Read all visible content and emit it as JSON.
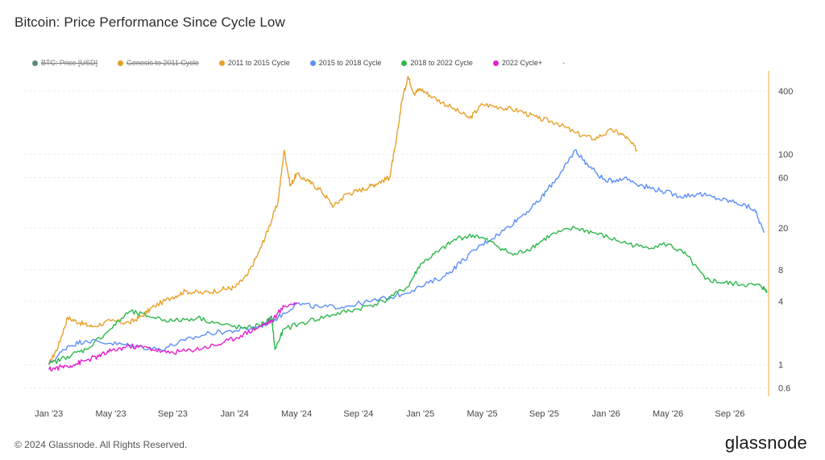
{
  "header": {
    "title": "Bitcoin: Price Performance Since Cycle Low"
  },
  "legend": {
    "items": [
      {
        "label": "BTC: Price [USD]",
        "color": "#5a8a7a",
        "disabled": true
      },
      {
        "label": "Genesis to 2011 Cycle",
        "color": "#e0a020",
        "disabled": true
      },
      {
        "label": "2011 to 2015 Cycle",
        "color": "#e8a12c",
        "disabled": false
      },
      {
        "label": "2015 to 2018 Cycle",
        "color": "#5b8ff9",
        "disabled": false
      },
      {
        "label": "2018 to 2022 Cycle",
        "color": "#2eb84a",
        "disabled": false
      },
      {
        "label": "2022 Cycle+",
        "color": "#e81fd1",
        "disabled": false
      }
    ],
    "extra": "-"
  },
  "footer": {
    "copyright": "© 2024 Glassnode. All Rights Reserved.",
    "brand": "glassnode"
  },
  "chart_data": {
    "type": "line",
    "title": "Bitcoin: Price Performance Since Cycle Low",
    "y_scale": "log",
    "ylim": [
      0.5,
      600
    ],
    "y_ticks": [
      0.6,
      1,
      4,
      8,
      20,
      60,
      100,
      400
    ],
    "x_ticks": [
      "Jan '23",
      "May '23",
      "Sep '23",
      "Jan '24",
      "May '24",
      "Sep '24",
      "Jan '25",
      "May '25",
      "Sep '25",
      "Jan '26",
      "May '26",
      "Sep '26"
    ],
    "x_range": [
      -0.4,
      11.6
    ],
    "grid": true,
    "y_axis_position": "right",
    "series": [
      {
        "name": "2011 to 2015 Cycle",
        "color": "#e8a12c",
        "x": [
          0,
          0.15,
          0.3,
          0.5,
          0.7,
          1.0,
          1.3,
          1.5,
          1.7,
          2.0,
          2.2,
          2.5,
          2.8,
          3.0,
          3.2,
          3.4,
          3.55,
          3.7,
          3.8,
          3.9,
          4.0,
          4.2,
          4.4,
          4.6,
          4.8,
          5.0,
          5.2,
          5.35,
          5.5,
          5.6,
          5.7,
          5.8,
          5.9,
          6.0,
          6.2,
          6.5,
          6.8,
          7.0,
          7.3,
          7.6,
          7.9,
          8.2,
          8.5,
          8.8,
          9.1,
          9.3,
          9.5
        ],
        "values": [
          1.0,
          1.5,
          2.8,
          2.5,
          2.3,
          2.6,
          2.5,
          2.9,
          3.6,
          4.4,
          5.0,
          4.8,
          5.2,
          5.4,
          7.0,
          12.0,
          20.0,
          35.0,
          110.0,
          50.0,
          65.0,
          55.0,
          45.0,
          32.0,
          42.0,
          45.0,
          50.0,
          55.0,
          60.0,
          120.0,
          320.0,
          550.0,
          380.0,
          420.0,
          350.0,
          280.0,
          220.0,
          300.0,
          280.0,
          260.0,
          220.0,
          200.0,
          160.0,
          140.0,
          170.0,
          150.0,
          110.0
        ]
      },
      {
        "name": "2015 to 2018 Cycle",
        "color": "#5b8ff9",
        "x": [
          0,
          0.3,
          0.6,
          1.0,
          1.4,
          1.8,
          2.2,
          2.6,
          3.0,
          3.4,
          3.7,
          4.0,
          4.4,
          4.8,
          5.2,
          5.6,
          6.0,
          6.4,
          6.7,
          7.0,
          7.3,
          7.6,
          7.9,
          8.1,
          8.3,
          8.5,
          8.7,
          9.0,
          9.3,
          9.6,
          9.9,
          10.2,
          10.5,
          10.8,
          11.1,
          11.4,
          11.55
        ],
        "values": [
          1.0,
          1.5,
          1.7,
          1.6,
          1.5,
          1.4,
          1.7,
          2.0,
          2.1,
          2.3,
          2.8,
          3.8,
          3.5,
          3.6,
          4.0,
          4.5,
          5.5,
          7.0,
          10.0,
          14.0,
          18.0,
          25.0,
          35.0,
          50.0,
          70.0,
          110.0,
          80.0,
          55.0,
          60.0,
          50.0,
          45.0,
          40.0,
          42.0,
          38.0,
          35.0,
          30.0,
          18.0
        ]
      },
      {
        "name": "2018 to 2022 Cycle",
        "color": "#2eb84a",
        "x": [
          0,
          0.3,
          0.6,
          1.0,
          1.3,
          1.6,
          2.0,
          2.4,
          2.8,
          3.2,
          3.5,
          3.6,
          3.65,
          3.8,
          4.2,
          4.6,
          5.0,
          5.4,
          5.8,
          6.0,
          6.3,
          6.6,
          6.9,
          7.2,
          7.5,
          7.8,
          8.1,
          8.5,
          8.8,
          9.2,
          9.6,
          10.0,
          10.3,
          10.6,
          10.9,
          11.2,
          11.5,
          11.6
        ],
        "values": [
          1.0,
          1.2,
          1.4,
          2.2,
          3.2,
          2.9,
          2.6,
          2.8,
          2.4,
          2.2,
          2.5,
          2.8,
          1.4,
          2.2,
          2.6,
          3.0,
          3.4,
          4.0,
          5.5,
          9.0,
          12.0,
          16.0,
          17.0,
          14.0,
          11.0,
          13.0,
          17.0,
          20.0,
          18.0,
          15.0,
          13.0,
          14.0,
          11.0,
          6.5,
          6.0,
          5.8,
          5.6,
          5.0
        ]
      },
      {
        "name": "2022 Cycle+",
        "color": "#e81fd1",
        "x": [
          0,
          0.2,
          0.4,
          0.6,
          0.8,
          1.0,
          1.3,
          1.6,
          1.9,
          2.2,
          2.5,
          2.8,
          3.1,
          3.4,
          3.6,
          3.8,
          4.0
        ],
        "values": [
          0.9,
          0.95,
          1.0,
          1.1,
          1.2,
          1.35,
          1.5,
          1.45,
          1.3,
          1.35,
          1.45,
          1.6,
          1.9,
          2.3,
          2.6,
          3.6,
          3.9
        ]
      }
    ]
  }
}
